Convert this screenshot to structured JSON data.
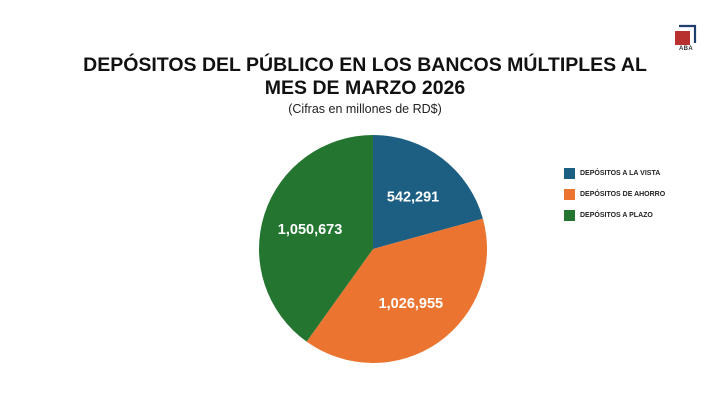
{
  "logo": {
    "text": "ABA",
    "color": "#b8312f"
  },
  "header": {
    "title_line1": "DEPÓSITOS DEL PÚBLICO EN LOS BANCOS MÚLTIPLES AL",
    "title_line2": "MES DE MARZO 2026",
    "subtitle": "(Cifras en millones de RD$)"
  },
  "chart_data": {
    "type": "pie",
    "title": "DEPÓSITOS DEL PÚBLICO EN LOS BANCOS MÚLTIPLES AL MES DE MARZO 2026",
    "subtitle": "(Cifras en millones de RD$)",
    "legend_position": "right",
    "slices": [
      {
        "label": "DEPÓSITOS A LA VISTA",
        "value": 542291,
        "display": "542,291",
        "color": "#1d5f82"
      },
      {
        "label": "DEPÓSITOS DE AHORRO",
        "value": 1026955,
        "display": "1,026,955",
        "color": "#ec7431"
      },
      {
        "label": "DEPÓSITOS A PLAZO",
        "value": 1050673,
        "display": "1,050,673",
        "color": "#237530"
      }
    ]
  }
}
